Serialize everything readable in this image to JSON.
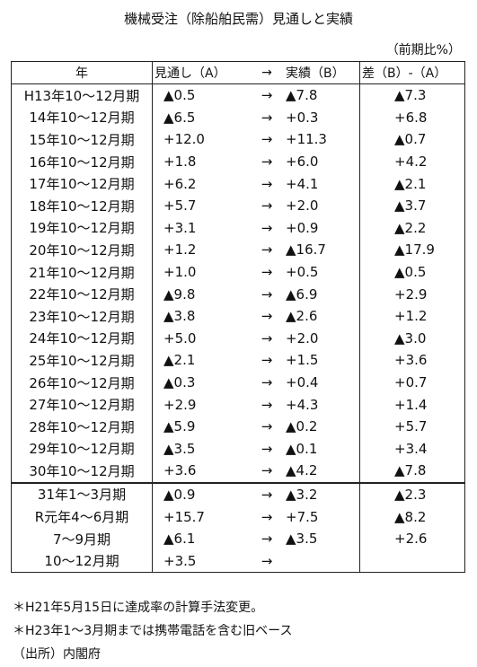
{
  "title": "機械受注（除船舶民需）見通しと実績",
  "unit": "（前期比%）",
  "table": {
    "header": [
      "年",
      "見通し（A）",
      "→",
      "実績（B）",
      "差（B）-（A）"
    ],
    "rows": [
      [
        "H13年10～12月期",
        "▲0.5",
        "→",
        "▲7.8",
        "▲7.3"
      ],
      [
        "14年10～12月期",
        "▲6.5",
        "→",
        "+0.3",
        "+6.8"
      ],
      [
        "15年10～12月期",
        "+12.0",
        "→",
        "+11.3",
        "▲0.7"
      ],
      [
        "16年10～12月期",
        "+1.8",
        "→",
        "+6.0",
        "+4.2"
      ],
      [
        "17年10～12月期",
        "+6.2",
        "→",
        "+4.1",
        "▲2.1"
      ],
      [
        "18年10～12月期",
        "+5.7",
        "→",
        "+2.0",
        "▲3.7"
      ],
      [
        "19年10～12月期",
        "+3.1",
        "→",
        "+0.9",
        "▲2.2"
      ],
      [
        "20年10～12月期",
        "+1.2",
        "→",
        "▲16.7",
        "▲17.9"
      ],
      [
        "21年10～12月期",
        "+1.0",
        "→",
        "+0.5",
        "▲0.5"
      ],
      [
        "22年10～12月期",
        "▲9.8",
        "→",
        "▲6.9",
        "+2.9"
      ],
      [
        "23年10～12月期",
        "▲3.8",
        "→",
        "▲2.6",
        "+1.2"
      ],
      [
        "24年10～12月期",
        "+5.0",
        "→",
        "+2.0",
        "▲3.0"
      ],
      [
        "25年10～12月期",
        "▲2.1",
        "→",
        "+1.5",
        "+3.6"
      ],
      [
        "26年10～12月期",
        "▲0.3",
        "→",
        "+0.4",
        "+0.7"
      ],
      [
        "27年10～12月期",
        "+2.9",
        "→",
        "+4.3",
        "+1.4"
      ],
      [
        "28年10～12月期",
        "▲5.9",
        "→",
        "▲0.2",
        "+5.7"
      ],
      [
        "29年10～12月期",
        "▲3.5",
        "→",
        "▲0.1",
        "+3.4"
      ],
      [
        "30年10～12月期",
        "+3.6",
        "→",
        "▲4.2",
        "▲7.8"
      ],
      [
        "31年1～3月期",
        "▲0.9",
        "→",
        "▲3.2",
        "▲2.3"
      ],
      [
        "R元年4～6月期",
        "+15.7",
        "→",
        "+7.5",
        "▲8.2"
      ],
      [
        "7～9月期",
        "▲6.1",
        "→",
        "▲3.5",
        "+2.6"
      ],
      [
        "10～12月期",
        "+3.5",
        "→"
      ]
    ]
  },
  "notes": [
    "＊H21年5月15日に達成率の計算手法変更。",
    "＊H23年1～3月期までは携帯電話を含む旧ベース",
    "（出所）内閣府"
  ]
}
